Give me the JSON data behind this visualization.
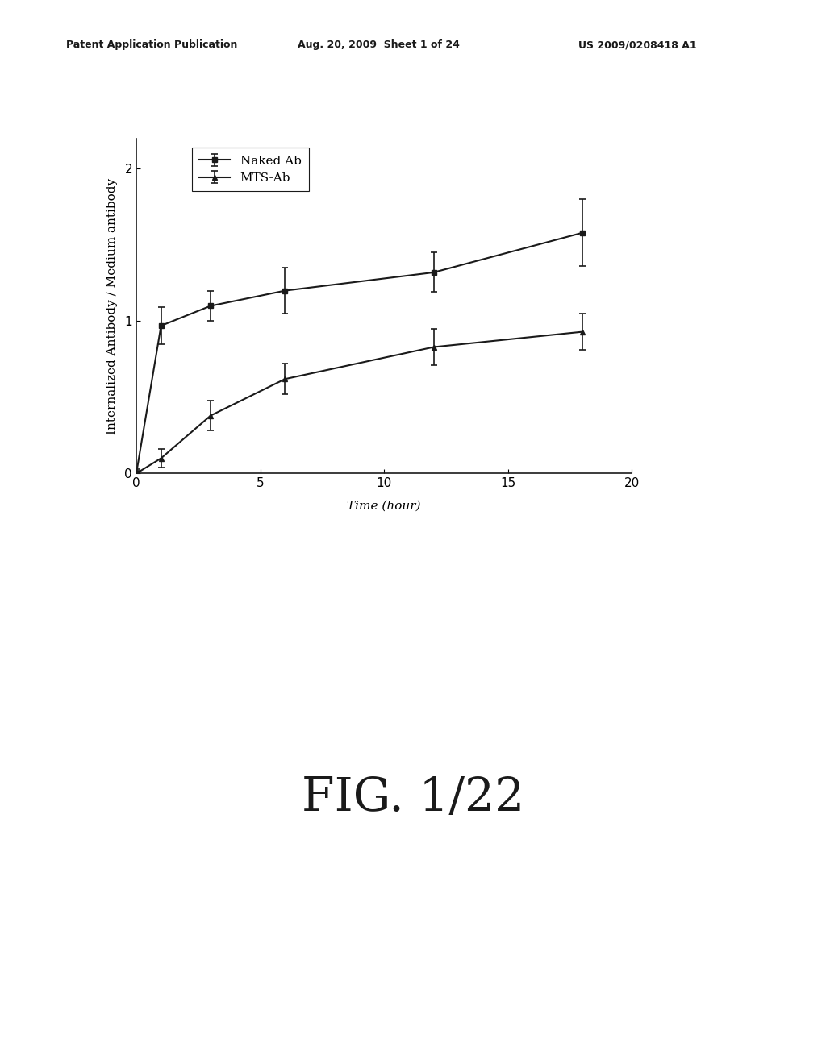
{
  "header_left": "Patent Application Publication",
  "header_center": "Aug. 20, 2009  Sheet 1 of 24",
  "header_right": "US 2009/0208418 A1",
  "figure_label": "FIG. 1/22",
  "ylabel": "Internalized Antibody / Medium antibody",
  "xlabel": "Time (hour)",
  "xlim": [
    0,
    20
  ],
  "ylim": [
    0,
    2.2
  ],
  "xticks": [
    0,
    5,
    10,
    15,
    20
  ],
  "yticks": [
    0,
    1,
    2
  ],
  "naked_ab_x": [
    0,
    1,
    3,
    6,
    12,
    18
  ],
  "naked_ab_y": [
    0.0,
    0.97,
    1.1,
    1.2,
    1.32,
    1.58
  ],
  "naked_ab_yerr": [
    0.03,
    0.12,
    0.1,
    0.15,
    0.13,
    0.22
  ],
  "mts_ab_x": [
    0,
    1,
    3,
    6,
    12,
    18
  ],
  "mts_ab_y": [
    0.0,
    0.1,
    0.38,
    0.62,
    0.83,
    0.93
  ],
  "mts_ab_yerr": [
    0.02,
    0.06,
    0.1,
    0.1,
    0.12,
    0.12
  ],
  "line_color": "#1a1a1a",
  "background_color": "#ffffff",
  "legend_naked": "Naked Ab",
  "legend_mts": "MTS-Ab",
  "header_fontsize": 9,
  "axis_label_fontsize": 11,
  "tick_fontsize": 11,
  "legend_fontsize": 11,
  "fig_label_fontsize": 42
}
